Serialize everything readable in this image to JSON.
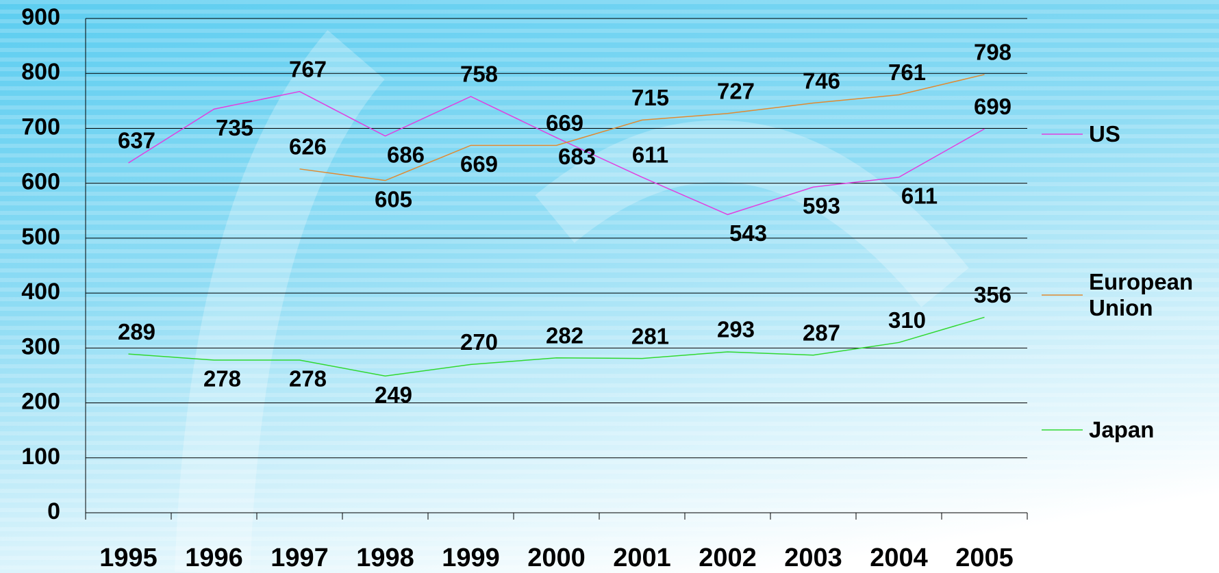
{
  "chart_data": {
    "type": "line",
    "categories": [
      "1995",
      "1996",
      "1997",
      "1998",
      "1999",
      "2000",
      "2001",
      "2002",
      "2003",
      "2004",
      "2005"
    ],
    "series": [
      {
        "name": "US",
        "color": "#e040e0",
        "values": [
          637,
          735,
          767,
          686,
          758,
          683,
          611,
          543,
          593,
          611,
          699
        ]
      },
      {
        "name": "European Union",
        "color": "#e08a30",
        "values": [
          null,
          null,
          626,
          605,
          669,
          669,
          715,
          727,
          746,
          761,
          798
        ]
      },
      {
        "name": "Japan",
        "color": "#30d830",
        "values": [
          289,
          278,
          278,
          249,
          270,
          282,
          281,
          293,
          287,
          310,
          356
        ]
      }
    ],
    "ylim": [
      0,
      900
    ],
    "yticks": [
      0,
      100,
      200,
      300,
      400,
      500,
      600,
      700,
      800,
      900
    ],
    "grid": true,
    "legend": "right"
  }
}
